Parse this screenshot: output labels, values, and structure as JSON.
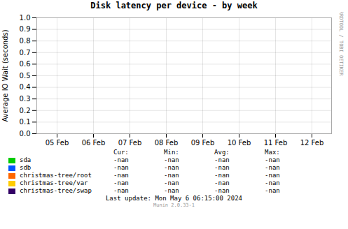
{
  "chart_data": {
    "type": "line",
    "title": "Disk latency per device - by week",
    "y_label": "Average IO Wait (seconds)",
    "categories": [
      "05 Feb",
      "06 Feb",
      "07 Feb",
      "08 Feb",
      "09 Feb",
      "10 Feb",
      "11 Feb",
      "12 Feb"
    ],
    "series": [
      {
        "name": "sda",
        "color": "#00cc00",
        "values": [
          null,
          null,
          null,
          null,
          null,
          null,
          null,
          null
        ],
        "table": [
          "-nan",
          "-nan",
          "-nan",
          "-nan"
        ]
      },
      {
        "name": "sdb",
        "color": "#0055ff",
        "values": [
          null,
          null,
          null,
          null,
          null,
          null,
          null,
          null
        ],
        "table": [
          "-nan",
          "-nan",
          "-nan",
          "-nan"
        ]
      },
      {
        "name": "christmas-tree/root",
        "color": "#ff6600",
        "values": [
          null,
          null,
          null,
          null,
          null,
          null,
          null,
          null
        ],
        "table": [
          "-nan",
          "-nan",
          "-nan",
          "-nan"
        ]
      },
      {
        "name": "christmas-tree/var",
        "color": "#ffcc00",
        "values": [
          null,
          null,
          null,
          null,
          null,
          null,
          null,
          null
        ],
        "table": [
          "-nan",
          "-nan",
          "-nan",
          "-nan"
        ]
      },
      {
        "name": "christmas-tree/swap",
        "color": "#330066",
        "values": [
          null,
          null,
          null,
          null,
          null,
          null,
          null,
          null
        ],
        "table": [
          "-nan",
          "-nan",
          "-nan",
          "-nan"
        ]
      }
    ],
    "table_header": [
      "Cur:",
      "Min:",
      "Avg:",
      "Max:"
    ],
    "ylim": [
      0.0,
      1.0
    ],
    "yticks": [
      {
        "value": 0.0,
        "label": "0.0"
      },
      0.1,
      0.2,
      0.3,
      0.4,
      0.5,
      0.6,
      0.7,
      0.8,
      0.9,
      {
        "value": 1.0,
        "label": "1.0"
      }
    ],
    "grid": true,
    "watermark": "RRDTOOL / TOBI OETIKER",
    "footer": [
      "Last update: Mon May   6 06:15:00 2024",
      "Munin 2.0.33-1"
    ]
  }
}
